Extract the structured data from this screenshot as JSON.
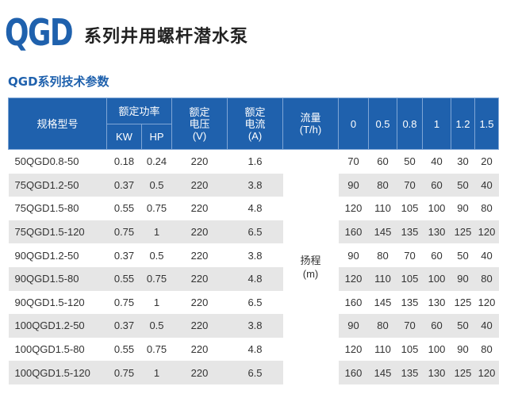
{
  "header": {
    "brand": "QGD",
    "title": "系列井用螺杆潜水泵",
    "subtitle": "QGD系列技术参数"
  },
  "table": {
    "col_model": "规格型号",
    "col_power": "额定功率",
    "col_kw": "KW",
    "col_hp": "HP",
    "col_voltage": "额定\n电压\n(V)",
    "col_current": "额定\n电流\n(A)",
    "col_flow": "流量\n(T/h)",
    "flow_values": [
      "0",
      "0.5",
      "0.8",
      "1",
      "1.2",
      "1.5"
    ],
    "head_label": "扬程\n(m)",
    "rows": [
      {
        "model": "50QGD0.8-50",
        "kw": "0.18",
        "hp": "0.24",
        "v": "220",
        "a": "1.6",
        "h": [
          "70",
          "60",
          "50",
          "40",
          "30",
          "20"
        ]
      },
      {
        "model": "75QGD1.2-50",
        "kw": "0.37",
        "hp": "0.5",
        "v": "220",
        "a": "3.8",
        "h": [
          "90",
          "80",
          "70",
          "60",
          "50",
          "40"
        ]
      },
      {
        "model": "75QGD1.5-80",
        "kw": "0.55",
        "hp": "0.75",
        "v": "220",
        "a": "4.8",
        "h": [
          "120",
          "110",
          "105",
          "100",
          "90",
          "80"
        ]
      },
      {
        "model": "75QGD1.5-120",
        "kw": "0.75",
        "hp": "1",
        "v": "220",
        "a": "6.5",
        "h": [
          "160",
          "145",
          "135",
          "130",
          "125",
          "120"
        ]
      },
      {
        "model": "90QGD1.2-50",
        "kw": "0.37",
        "hp": "0.5",
        "v": "220",
        "a": "3.8",
        "h": [
          "90",
          "80",
          "70",
          "60",
          "50",
          "40"
        ]
      },
      {
        "model": "90QGD1.5-80",
        "kw": "0.55",
        "hp": "0.75",
        "v": "220",
        "a": "4.8",
        "h": [
          "120",
          "110",
          "105",
          "100",
          "90",
          "80"
        ]
      },
      {
        "model": "90QGD1.5-120",
        "kw": "0.75",
        "hp": "1",
        "v": "220",
        "a": "6.5",
        "h": [
          "160",
          "145",
          "135",
          "130",
          "125",
          "120"
        ]
      },
      {
        "model": "100QGD1.2-50",
        "kw": "0.37",
        "hp": "0.5",
        "v": "220",
        "a": "3.8",
        "h": [
          "90",
          "80",
          "70",
          "60",
          "50",
          "40"
        ]
      },
      {
        "model": "100QGD1.5-80",
        "kw": "0.55",
        "hp": "0.75",
        "v": "220",
        "a": "4.8",
        "h": [
          "120",
          "110",
          "105",
          "100",
          "90",
          "80"
        ]
      },
      {
        "model": "100QGD1.5-120",
        "kw": "0.75",
        "hp": "1",
        "v": "220",
        "a": "6.5",
        "h": [
          "160",
          "145",
          "135",
          "130",
          "125",
          "120"
        ]
      }
    ]
  }
}
